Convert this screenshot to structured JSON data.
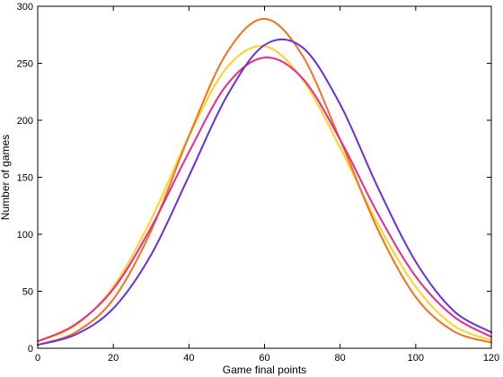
{
  "chart_data": {
    "type": "line",
    "xlabel": "Game final points",
    "ylabel": "Number of games",
    "xlim": [
      0,
      120
    ],
    "ylim": [
      0,
      300
    ],
    "xticks": [
      0,
      20,
      40,
      60,
      80,
      100,
      120
    ],
    "yticks": [
      0,
      50,
      100,
      150,
      200,
      250,
      300
    ],
    "grid": false,
    "series": [
      {
        "color": "#ffd21f",
        "x": [
          0,
          10,
          20,
          30,
          40,
          50,
          60,
          70,
          80,
          90,
          100,
          110,
          120
        ],
        "y": [
          6,
          20,
          54,
          113,
          186,
          246,
          265,
          236,
          176,
          109,
          54,
          20,
          7
        ]
      },
      {
        "color": "#f2721a",
        "x": [
          0,
          10,
          20,
          30,
          40,
          50,
          60,
          70,
          80,
          90,
          100,
          110,
          120
        ],
        "y": [
          3,
          14,
          43,
          103,
          186,
          259,
          289,
          257,
          183,
          104,
          45,
          15,
          5
        ]
      },
      {
        "color": "#ea2a88",
        "x": [
          0,
          10,
          20,
          30,
          40,
          50,
          60,
          70,
          80,
          90,
          100,
          110,
          120
        ],
        "y": [
          6,
          21,
          52,
          106,
          172,
          231,
          255,
          237,
          183,
          118,
          63,
          28,
          10
        ]
      },
      {
        "color": "#6a2ee0",
        "x": [
          0,
          10,
          20,
          30,
          40,
          50,
          60,
          70,
          80,
          90,
          100,
          110,
          120
        ],
        "y": [
          3,
          12,
          35,
          82,
          151,
          221,
          266,
          264,
          214,
          141,
          76,
          33,
          14
        ]
      }
    ]
  }
}
